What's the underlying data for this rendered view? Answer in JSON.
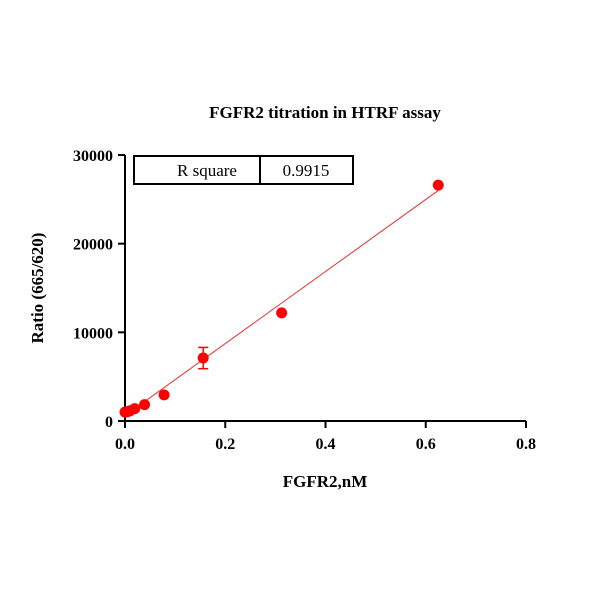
{
  "colors": {
    "series": "#ff0000",
    "fit_line": "#e03030",
    "axis": "#000000"
  },
  "chart_data": {
    "type": "scatter",
    "title": "FGFR2 titration in HTRF assay",
    "xlabel": "FGFR2,nM",
    "ylabel": "Ratio (665/620)",
    "xlim": [
      0,
      0.8
    ],
    "ylim": [
      0,
      30000
    ],
    "xticks": [
      "0.0",
      "0.2",
      "0.4",
      "0.6",
      "0.8"
    ],
    "yticks": [
      "0",
      "10000",
      "20000",
      "30000"
    ],
    "grid": false,
    "series": [
      {
        "points": [
          {
            "x": 0.0,
            "y": 1000,
            "err": 0
          },
          {
            "x": 0.0049,
            "y": 1050,
            "err": 0
          },
          {
            "x": 0.0098,
            "y": 1150,
            "err": 0
          },
          {
            "x": 0.0195,
            "y": 1400,
            "err": 0
          },
          {
            "x": 0.039,
            "y": 1850,
            "err": 0
          },
          {
            "x": 0.078,
            "y": 2950,
            "err": 0
          },
          {
            "x": 0.156,
            "y": 7100,
            "err": 1200
          },
          {
            "x": 0.3125,
            "y": 12200,
            "err": 0
          },
          {
            "x": 0.625,
            "y": 26600,
            "err": 0
          }
        ]
      }
    ],
    "fit_line": {
      "x": [
        0.0,
        0.625
      ],
      "y": [
        600,
        26000
      ]
    },
    "stats_table": {
      "label": "R square",
      "value": "0.9915"
    }
  }
}
